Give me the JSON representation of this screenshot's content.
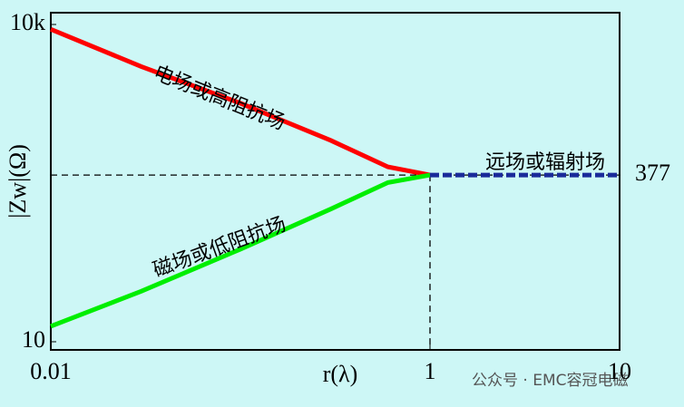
{
  "chart_data": {
    "type": "line",
    "xlabel": "r(λ)",
    "ylabel": "|Zw|(Ω)",
    "x_log": true,
    "y_log": true,
    "xlim": [
      0.01,
      10
    ],
    "ylim": [
      10,
      10000
    ],
    "xticks": [
      0.01,
      1,
      10
    ],
    "yticks": [
      10,
      {
        "value": 10000,
        "label": "10k"
      }
    ],
    "reference_y": 377,
    "reference_x": 1,
    "series": [
      {
        "name": "电场或高阻抗场",
        "color": "#ff0000",
        "x": [
          0.01,
          0.03,
          0.1,
          0.3,
          0.6,
          1
        ],
        "values": [
          9000,
          4000,
          1800,
          800,
          450,
          377
        ]
      },
      {
        "name": "磁场或低阻抗场",
        "color": "#00ee00",
        "x": [
          0.01,
          0.03,
          0.1,
          0.3,
          0.6,
          1
        ],
        "values": [
          14,
          30,
          75,
          180,
          320,
          377
        ]
      },
      {
        "name": "远场或辐射场",
        "color": "#1a2a9a",
        "x": [
          1,
          10
        ],
        "values": [
          377,
          377
        ]
      }
    ],
    "watermark": "公众号 · EMC容冠电磁"
  }
}
